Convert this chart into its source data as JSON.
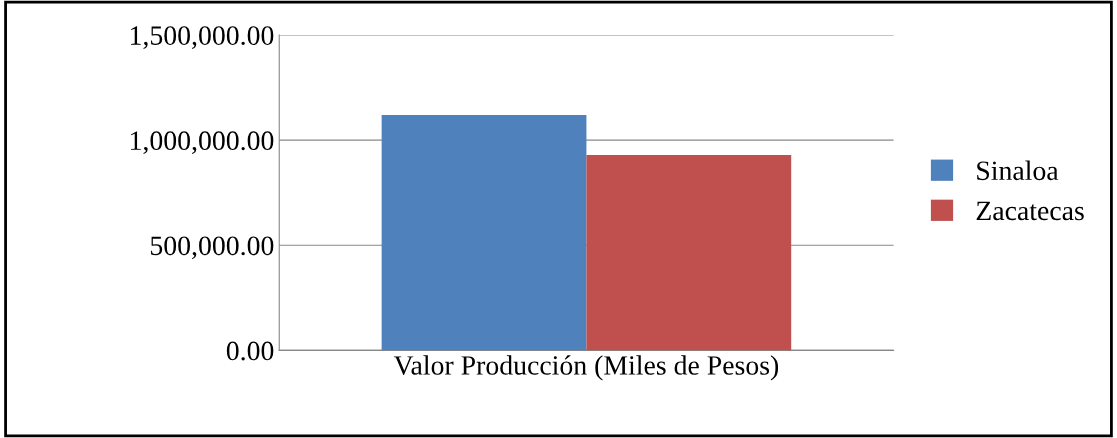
{
  "chart_data": {
    "type": "bar",
    "categories": [
      "Valor Producción (Miles de Pesos)"
    ],
    "series": [
      {
        "name": "Sinaloa",
        "color": "#4f81bd",
        "values": [
          1120000
        ]
      },
      {
        "name": "Zacatecas",
        "color": "#c0504d",
        "values": [
          930000
        ]
      }
    ],
    "ylim": [
      0,
      1500000
    ],
    "yticks": [
      {
        "value": 0,
        "label": "0.00"
      },
      {
        "value": 500000,
        "label": "500,000.00"
      },
      {
        "value": 1000000,
        "label": "1,000,000.00"
      },
      {
        "value": 1500000,
        "label": "1,500,000.00"
      }
    ],
    "grid": "y",
    "legend": "right"
  }
}
